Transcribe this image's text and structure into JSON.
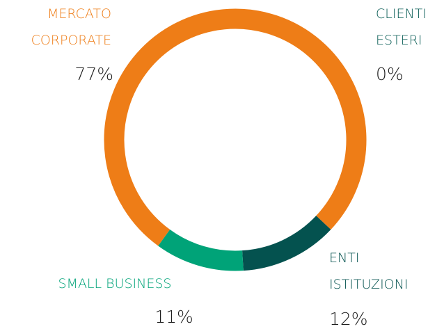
{
  "chart_data": {
    "type": "donut",
    "categories": [
      "MERCATO CORPORATE",
      "CLIENTI ESTERI",
      "ENTI ISTITUZIONI",
      "SMALL BUSINESS"
    ],
    "values": [
      77,
      0,
      12,
      11
    ],
    "value_labels": [
      "77%",
      "0%",
      "12%",
      "11%"
    ],
    "colors": [
      "#ee7d17",
      "#0b5e57",
      "#04524f",
      "#00a378"
    ]
  }
}
